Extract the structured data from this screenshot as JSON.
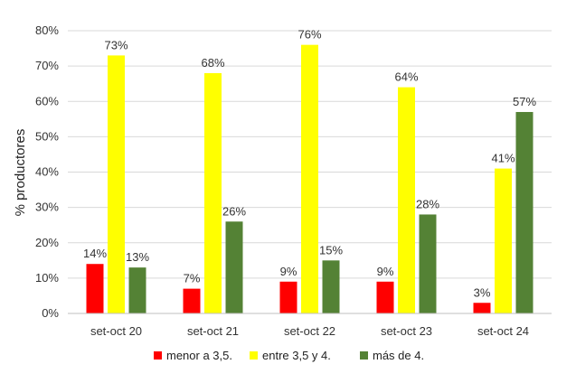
{
  "chart_data": {
    "type": "bar",
    "title": "",
    "xlabel": "",
    "ylabel": "% productores",
    "ylim": [
      0,
      80
    ],
    "yticks": [
      "0%",
      "10%",
      "20%",
      "30%",
      "40%",
      "50%",
      "60%",
      "70%",
      "80%"
    ],
    "categories": [
      "set-oct 20",
      "set-oct 21",
      "set-oct 22",
      "set-oct 23",
      "set-oct 24"
    ],
    "series": [
      {
        "name": "menor a 3,5.",
        "color": "#ff0000",
        "values": [
          14,
          7,
          9,
          9,
          3
        ],
        "labels": [
          "14%",
          "7%",
          "9%",
          "9%",
          "3%"
        ]
      },
      {
        "name": "entre 3,5 y 4.",
        "color": "#ffff00",
        "values": [
          73,
          68,
          76,
          64,
          41
        ],
        "labels": [
          "73%",
          "68%",
          "76%",
          "64%",
          "41%"
        ]
      },
      {
        "name": "más de 4.",
        "color": "#548235",
        "values": [
          13,
          26,
          15,
          28,
          57
        ],
        "labels": [
          "13%",
          "26%",
          "15%",
          "28%",
          "57%"
        ]
      }
    ],
    "grid": true,
    "legend_position": "bottom"
  }
}
